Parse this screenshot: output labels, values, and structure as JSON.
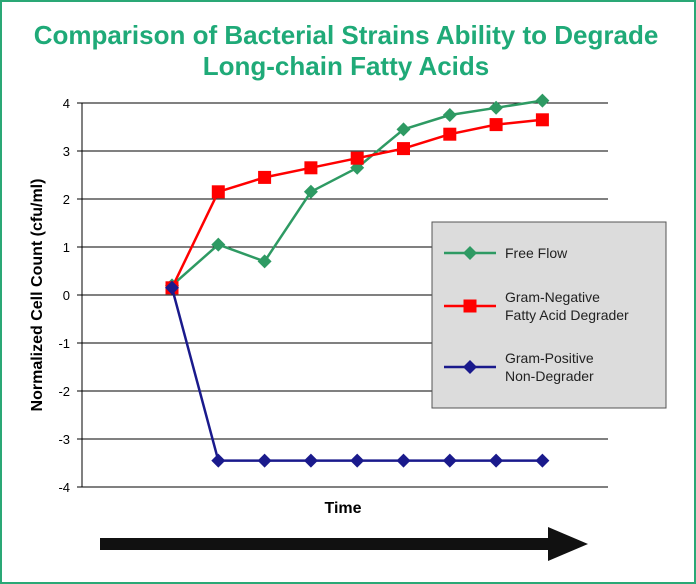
{
  "chart_data": {
    "type": "line",
    "title_line1": "Comparison of Bacterial Strains Ability to Degrade",
    "title_line2": "Long-chain Fatty Acids",
    "xlabel": "Time",
    "ylabel": "Normalized Cell Count (cfu/ml)",
    "ylim": [
      -4,
      4
    ],
    "yticks": [
      4,
      3,
      2,
      1,
      0,
      -1,
      -2,
      -3,
      -4
    ],
    "x": [
      1,
      2,
      3,
      4,
      5,
      6,
      7,
      8,
      9
    ],
    "grid": true,
    "legend_position": "right",
    "series": [
      {
        "name": "Free Flow",
        "color": "#2e9a63",
        "marker": "diamond",
        "values": [
          0.2,
          1.05,
          0.7,
          2.15,
          2.65,
          3.45,
          3.75,
          3.9,
          4.05
        ]
      },
      {
        "name_line1": "Gram-Negative",
        "name_line2": "Fatty Acid Degrader",
        "color": "#ff0000",
        "marker": "square",
        "values": [
          0.15,
          2.15,
          2.45,
          2.65,
          2.85,
          3.05,
          3.35,
          3.55,
          3.65
        ]
      },
      {
        "name_line1": "Gram-Positive",
        "name_line2": "Non-Degrader",
        "color": "#1a1a8c",
        "marker": "diamond",
        "values": [
          0.15,
          -3.45,
          -3.45,
          -3.45,
          -3.45,
          -3.45,
          -3.45,
          -3.45,
          -3.45
        ]
      }
    ]
  }
}
